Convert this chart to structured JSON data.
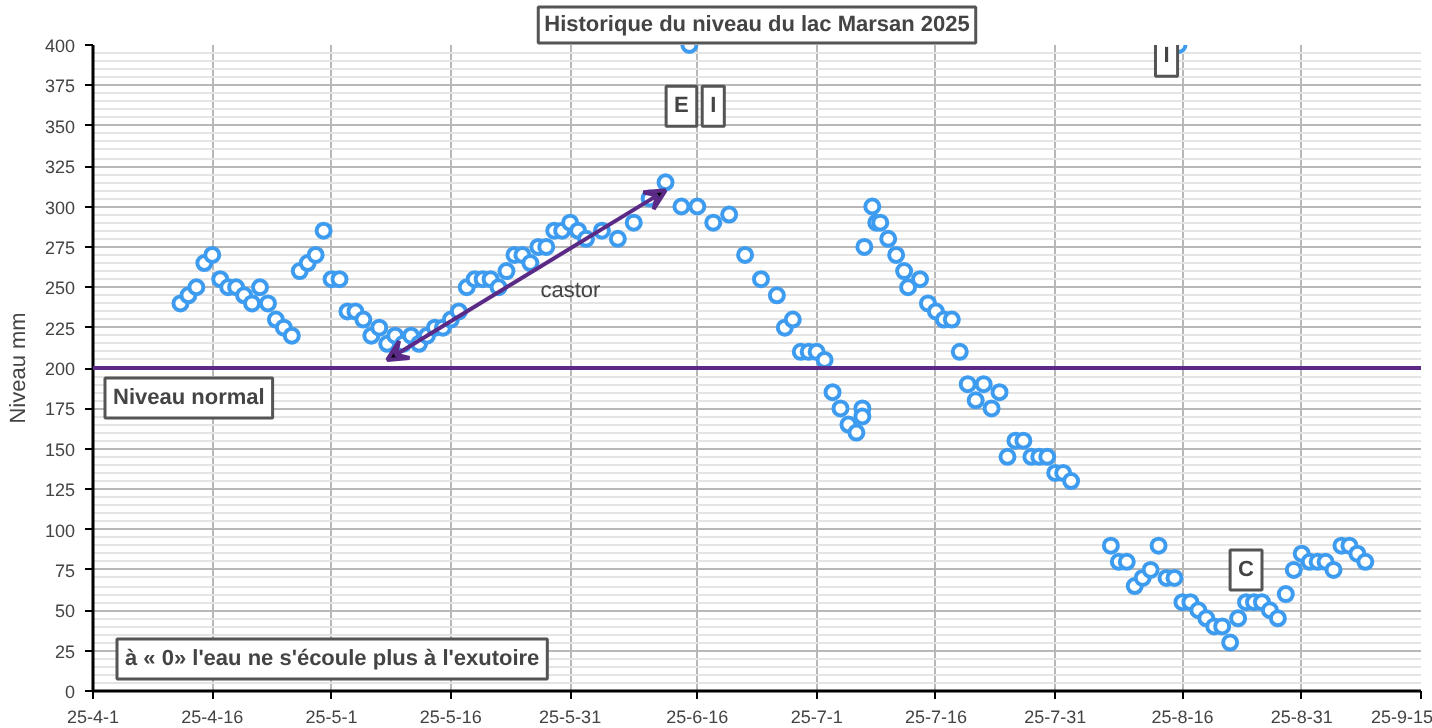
{
  "chart_data": {
    "type": "scatter",
    "title": "Historique du niveau du lac Marsan 2025",
    "ylabel": "Niveau mm",
    "x": [
      "2025-04-12",
      "2025-04-13",
      "2025-04-14",
      "2025-04-15",
      "2025-04-16",
      "2025-04-17",
      "2025-04-18",
      "2025-04-19",
      "2025-04-20",
      "2025-04-21",
      "2025-04-22",
      "2025-04-23",
      "2025-04-24",
      "2025-04-25",
      "2025-04-26",
      "2025-04-27",
      "2025-04-28",
      "2025-04-29",
      "2025-04-30",
      "2025-05-01",
      "2025-05-02",
      "2025-05-03",
      "2025-05-04",
      "2025-05-05",
      "2025-05-06",
      "2025-05-07",
      "2025-05-08",
      "2025-05-09",
      "2025-05-10",
      "2025-05-11",
      "2025-05-12",
      "2025-05-13",
      "2025-05-14",
      "2025-05-15",
      "2025-05-16",
      "2025-05-17",
      "2025-05-18",
      "2025-05-19",
      "2025-05-20",
      "2025-05-21",
      "2025-05-22",
      "2025-05-23",
      "2025-05-24",
      "2025-05-25",
      "2025-05-26",
      "2025-05-27",
      "2025-05-28",
      "2025-05-29",
      "2025-05-30",
      "2025-05-31",
      "2025-06-01",
      "2025-06-02",
      "2025-06-04",
      "2025-06-06",
      "2025-06-08",
      "2025-06-10",
      "2025-06-12",
      "2025-06-14",
      "2025-06-15",
      "2025-06-16",
      "2025-06-18",
      "2025-06-20",
      "2025-06-22",
      "2025-06-24",
      "2025-06-26",
      "2025-06-27",
      "2025-06-28",
      "2025-06-29",
      "2025-06-30",
      "2025-07-01",
      "2025-07-02",
      "2025-07-03",
      "2025-07-04",
      "2025-07-05",
      "2025-07-06",
      "2025-07-06T18:00",
      "2025-07-06T18:00",
      "2025-07-07",
      "2025-07-08",
      "2025-07-08T12:00",
      "2025-07-09",
      "2025-07-10",
      "2025-07-11",
      "2025-07-12",
      "2025-07-12T12:00",
      "2025-07-14",
      "2025-07-15",
      "2025-07-16",
      "2025-07-17",
      "2025-07-18",
      "2025-07-19",
      "2025-07-20",
      "2025-07-21",
      "2025-07-22",
      "2025-07-23",
      "2025-07-24",
      "2025-07-25",
      "2025-07-26",
      "2025-07-27",
      "2025-07-28",
      "2025-07-29",
      "2025-07-30",
      "2025-07-31",
      "2025-08-01",
      "2025-08-02",
      "2025-08-07",
      "2025-08-08",
      "2025-08-09",
      "2025-08-10",
      "2025-08-11",
      "2025-08-12",
      "2025-08-13",
      "2025-08-14",
      "2025-08-15",
      "2025-08-15T12:00",
      "2025-08-16",
      "2025-08-17",
      "2025-08-18",
      "2025-08-19",
      "2025-08-20",
      "2025-08-21",
      "2025-08-22",
      "2025-08-23",
      "2025-08-24",
      "2025-08-25",
      "2025-08-26",
      "2025-08-27",
      "2025-08-28",
      "2025-08-29",
      "2025-08-30",
      "2025-08-31",
      "2025-09-01",
      "2025-09-02",
      "2025-09-03",
      "2025-09-04",
      "2025-09-05",
      "2025-09-06",
      "2025-09-07",
      "2025-09-08"
    ],
    "series": [
      {
        "color": "#3d9cf0",
        "values": [
          240,
          245,
          250,
          265,
          270,
          255,
          250,
          250,
          245,
          240,
          250,
          240,
          230,
          225,
          220,
          260,
          265,
          270,
          285,
          255,
          255,
          235,
          235,
          230,
          220,
          225,
          215,
          220,
          215,
          220,
          215,
          220,
          225,
          225,
          230,
          235,
          250,
          255,
          255,
          255,
          250,
          260,
          270,
          270,
          265,
          275,
          275,
          285,
          285,
          290,
          285,
          280,
          285,
          280,
          290,
          305,
          315,
          300,
          400,
          300,
          290,
          295,
          270,
          255,
          245,
          225,
          230,
          210,
          210,
          210,
          205,
          185,
          175,
          165,
          160,
          175,
          170,
          275,
          300,
          290,
          290,
          280,
          270,
          260,
          250,
          255,
          240,
          235,
          230,
          230,
          210,
          190,
          180,
          190,
          175,
          185,
          145,
          155,
          155,
          145,
          145,
          145,
          135,
          135,
          130,
          90,
          80,
          80,
          65,
          70,
          75,
          90,
          70,
          70,
          400,
          55,
          55,
          50,
          45,
          40,
          40,
          30,
          45,
          55,
          55,
          55,
          50,
          45,
          60,
          75,
          85,
          80,
          80,
          80,
          75,
          90,
          90,
          85,
          80
        ]
      }
    ],
    "marker": "circle",
    "xlim": [
      "2025-04-01",
      "2025-09-15"
    ],
    "xticks": [
      {
        "value": "2025-04-01",
        "label": "25-4-1"
      },
      {
        "value": "2025-04-16",
        "label": "25-4-16"
      },
      {
        "value": "2025-05-01",
        "label": "25-5-1"
      },
      {
        "value": "2025-05-16",
        "label": "25-5-16"
      },
      {
        "value": "2025-05-31",
        "label": "25-5-31"
      },
      {
        "value": "2025-06-16",
        "label": "25-6-16"
      },
      {
        "value": "2025-07-01",
        "label": "25-7-1"
      },
      {
        "value": "2025-07-16",
        "label": "25-7-16"
      },
      {
        "value": "2025-07-31",
        "label": "25-7-31"
      },
      {
        "value": "2025-08-16",
        "label": "25-8-16"
      },
      {
        "value": "2025-08-31",
        "label": "25-8-31"
      },
      {
        "value": "2025-09-15",
        "label": "25-9-15"
      }
    ],
    "ylim": [
      0,
      400
    ],
    "yticks": [
      0,
      25,
      50,
      75,
      100,
      125,
      150,
      175,
      200,
      225,
      250,
      275,
      300,
      325,
      350,
      375,
      400
    ],
    "grid": true,
    "ref_lines": [
      {
        "axis": "y",
        "value": 200,
        "label": "Niveau normal",
        "color": "#5a2a86"
      }
    ],
    "annotations": [
      "castor",
      {
        "text": "E",
        "x": "2025-06-14",
        "y": 362
      },
      {
        "text": "I",
        "x": "2025-06-18",
        "y": 362
      },
      {
        "text": "I",
        "x": "2025-08-14",
        "y": 393
      },
      {
        "text": "C",
        "x": "2025-08-24",
        "y": 75
      },
      "à « 0» l'eau ne s'écoule plus à l'exutoire"
    ]
  }
}
